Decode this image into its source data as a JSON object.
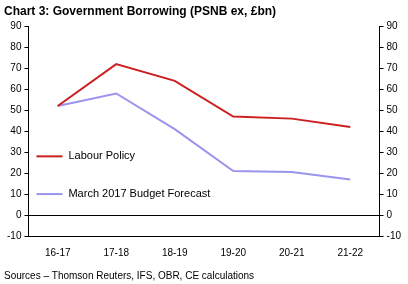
{
  "chart_data": {
    "type": "line",
    "title": "Chart 3: Government Borrowing (PSNB ex, £bn)",
    "source": "Sources – Thomson Reuters, IFS, OBR, CE calculations",
    "categories": [
      "16-17",
      "17-18",
      "18-19",
      "19-20",
      "20-21",
      "21-22"
    ],
    "series": [
      {
        "name": "Labour Policy",
        "color": "#cc1f1f",
        "values": [
          52,
          72,
          64,
          47,
          46,
          42
        ],
        "marker": "none",
        "line_style": "solid"
      },
      {
        "name": "March 2017 Budget Forecast",
        "color": "#9a94ee",
        "values": [
          52,
          58,
          41,
          21,
          20.5,
          17
        ],
        "marker": "none",
        "line_style": "solid"
      }
    ],
    "ylim": [
      -10,
      90
    ],
    "yticks": [
      -10,
      0,
      10,
      20,
      30,
      40,
      50,
      60,
      70,
      80,
      90
    ],
    "y2lim": [
      -10,
      90
    ],
    "y2ticks": [
      -10,
      0,
      10,
      20,
      30,
      40,
      50,
      60,
      70,
      80,
      90
    ],
    "grid": false,
    "legend": "left"
  }
}
